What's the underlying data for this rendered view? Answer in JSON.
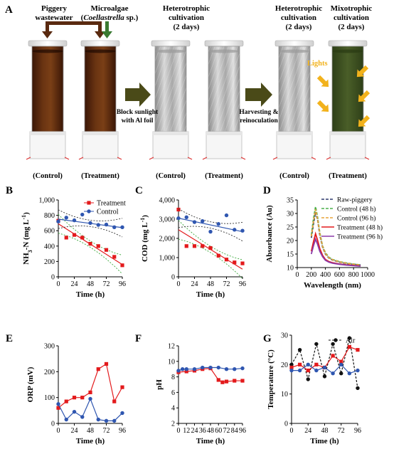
{
  "figure": {
    "panelA": {
      "letter": "A",
      "label_piggery": [
        "Piggery",
        "wastewater"
      ],
      "label_microalgae": "Microalgae",
      "label_species_open": "(",
      "label_species": "Coellastrella",
      "label_species_close": " sp.)",
      "stage1_title": [
        "Heterotrophic",
        "cultivation",
        "(2 days)"
      ],
      "stage2_title_left": [
        "Heterotrophic",
        "cultivation",
        "(2 days)"
      ],
      "stage2_title_right": [
        "Mixotrophic",
        "cultivation",
        "(2 days)"
      ],
      "arrow1_label": [
        "Block sunlight",
        "with Al foil"
      ],
      "arrow2_label": [
        "Harvesting &",
        "reinoculation"
      ],
      "lights_label": "Lights",
      "tube_labels": [
        "(Control)",
        "(Treatment)",
        "(Control)",
        "(Treatment)",
        "(Control)",
        "(Treatment)"
      ],
      "colors": {
        "wastewater": "#5a2a10",
        "algae_arrow": "#3a7a32",
        "green_culture": "#3d5222",
        "arrow": "#4a4a18",
        "lights": "#f2b21c"
      }
    }
  },
  "chart_data": [
    {
      "panel": "B",
      "type": "scatter",
      "xlabel": "Time (h)",
      "ylabel": "NH3-N (mg L-1)",
      "ylabel_parts": {
        "a": "NH",
        "b": "3",
        "c": "-N (mg L",
        "d": "-1",
        "e": ")"
      },
      "xlim": [
        0,
        96
      ],
      "ylim": [
        0,
        1000
      ],
      "xticks": [
        0,
        24,
        48,
        72,
        96
      ],
      "yticks": [
        0,
        200,
        400,
        600,
        800,
        1000
      ],
      "ytick_labels": [
        "0",
        "200",
        "400",
        "600",
        "800",
        "1,000"
      ],
      "legend": "top-right",
      "series": [
        {
          "name": "Treatment",
          "color": "#e31a1c",
          "marker": "square",
          "x": [
            0,
            12,
            24,
            36,
            48,
            60,
            72,
            84,
            96
          ],
          "y": [
            730,
            510,
            545,
            510,
            430,
            400,
            350,
            260,
            150
          ],
          "fit": [
            690,
            160
          ]
        },
        {
          "name": "Control",
          "color": "#2f56b0",
          "marker": "circle",
          "x": [
            0,
            12,
            24,
            36,
            48,
            60,
            72,
            84,
            96
          ],
          "y": [
            720,
            770,
            735,
            810,
            700,
            675,
            680,
            645,
            645
          ],
          "fit": [
            750,
            640
          ]
        }
      ]
    },
    {
      "panel": "C",
      "type": "scatter",
      "xlabel": "Time (h)",
      "ylabel": "COD (mg L-1)",
      "ylabel_parts": {
        "a": "COD (mg L",
        "d": "-1",
        "e": ")"
      },
      "xlim": [
        0,
        96
      ],
      "ylim": [
        0,
        4000
      ],
      "xticks": [
        0,
        24,
        48,
        72,
        96
      ],
      "yticks": [
        0,
        1000,
        2000,
        3000,
        4000
      ],
      "ytick_labels": [
        "0",
        "1,000",
        "2,000",
        "3,000",
        "4,000"
      ],
      "series": [
        {
          "name": "Treatment",
          "color": "#e31a1c",
          "marker": "square",
          "x": [
            0,
            12,
            24,
            36,
            48,
            60,
            72,
            84,
            96
          ],
          "y": [
            3500,
            1600,
            1600,
            1600,
            1500,
            1100,
            900,
            750,
            700
          ],
          "fit": [
            2450,
            400
          ]
        },
        {
          "name": "Control",
          "color": "#2f56b0",
          "marker": "circle",
          "x": [
            0,
            12,
            24,
            36,
            48,
            60,
            72,
            84,
            96
          ],
          "y": [
            3050,
            3100,
            2850,
            2900,
            2350,
            2750,
            3200,
            2450,
            2400
          ],
          "fit": [
            3050,
            2350
          ]
        }
      ]
    },
    {
      "panel": "D",
      "type": "line",
      "xlabel": "Wavelength (nm)",
      "ylabel": "Absorbance (Au)",
      "xlim": [
        0,
        1000
      ],
      "ylim": [
        10,
        35
      ],
      "xticks": [
        0,
        200,
        400,
        600,
        800,
        1000
      ],
      "yticks": [
        10,
        15,
        20,
        25,
        30,
        35
      ],
      "legend": "top-right",
      "series": [
        {
          "name": "Raw-piggery",
          "color": "#2f3a6e",
          "dash": true,
          "x": [
            200,
            230,
            260,
            290,
            320,
            360,
            400,
            450,
            500,
            600,
            700,
            800,
            900
          ],
          "y": [
            21,
            26,
            30.5,
            27.5,
            22,
            17.5,
            15,
            13.5,
            12.8,
            12,
            11.5,
            11.2,
            11
          ]
        },
        {
          "name": "Control (48 h)",
          "color": "#4bb04b",
          "dash": true,
          "x": [
            200,
            230,
            260,
            290,
            320,
            360,
            400,
            450,
            500,
            600,
            700,
            800,
            900
          ],
          "y": [
            22,
            28,
            32.5,
            28.5,
            23,
            18,
            15.5,
            13.8,
            13,
            12.2,
            11.7,
            11.3,
            11
          ]
        },
        {
          "name": "Control (96 h)",
          "color": "#e8a33a",
          "dash": true,
          "x": [
            200,
            230,
            260,
            290,
            320,
            360,
            400,
            450,
            500,
            600,
            700,
            800,
            900
          ],
          "y": [
            21.5,
            27,
            31.5,
            27.8,
            22.5,
            17.8,
            15.2,
            13.6,
            12.9,
            12.1,
            11.6,
            11.2,
            10.9
          ]
        },
        {
          "name": "Treatment (48 h)",
          "color": "#e31a1c",
          "dash": false,
          "x": [
            200,
            230,
            260,
            290,
            320,
            360,
            400,
            450,
            500,
            600,
            700,
            800,
            900
          ],
          "y": [
            16,
            19.5,
            22.5,
            20,
            17,
            14.5,
            13,
            12.2,
            11.8,
            11.3,
            11,
            10.8,
            10.6
          ]
        },
        {
          "name": "Treatment (96 h)",
          "color": "#8b3aa8",
          "dash": false,
          "x": [
            200,
            230,
            260,
            290,
            320,
            360,
            400,
            450,
            500,
            600,
            700,
            800,
            900
          ],
          "y": [
            15,
            18,
            20.5,
            18.5,
            16,
            14,
            12.7,
            12,
            11.6,
            11.2,
            10.9,
            10.7,
            10.5
          ]
        }
      ]
    },
    {
      "panel": "E",
      "type": "line",
      "xlabel": "Time (h)",
      "ylabel": "ORP (mV)",
      "xlim": [
        0,
        96
      ],
      "ylim": [
        0,
        300
      ],
      "xticks": [
        0,
        24,
        48,
        72,
        96
      ],
      "yticks": [
        0,
        100,
        200,
        300
      ],
      "series": [
        {
          "name": "Treatment",
          "color": "#e31a1c",
          "marker": "square",
          "x": [
            0,
            12,
            24,
            36,
            48,
            60,
            72,
            84,
            96
          ],
          "y": [
            60,
            85,
            100,
            100,
            120,
            210,
            230,
            85,
            140
          ]
        },
        {
          "name": "Control",
          "color": "#2f56b0",
          "marker": "circle",
          "x": [
            0,
            12,
            24,
            36,
            48,
            60,
            72,
            84,
            96
          ],
          "y": [
            75,
            15,
            45,
            25,
            95,
            15,
            10,
            10,
            40
          ]
        }
      ]
    },
    {
      "panel": "F",
      "type": "line",
      "xlabel": "Time (h)",
      "ylabel": "pH",
      "xlim": [
        0,
        96
      ],
      "ylim": [
        2,
        12
      ],
      "xticks": [
        0,
        12,
        24,
        36,
        48,
        60,
        72,
        84,
        96
      ],
      "yticks": [
        2,
        4,
        6,
        8,
        10,
        12
      ],
      "series": [
        {
          "name": "Treatment",
          "color": "#e31a1c",
          "marker": "square",
          "x": [
            0,
            12,
            24,
            36,
            48,
            60,
            66,
            72,
            84,
            96
          ],
          "y": [
            8.6,
            8.7,
            8.8,
            9.0,
            9.1,
            7.6,
            7.3,
            7.4,
            7.5,
            7.5
          ]
        },
        {
          "name": "Control",
          "color": "#2f56b0",
          "marker": "circle",
          "x": [
            0,
            6,
            12,
            24,
            36,
            48,
            60,
            72,
            84,
            96
          ],
          "y": [
            8.8,
            9.0,
            9.0,
            9.0,
            9.2,
            9.2,
            9.2,
            9.0,
            9.0,
            9.1
          ]
        }
      ]
    },
    {
      "panel": "G",
      "type": "line",
      "xlabel": "Time (h)",
      "ylabel": "Temperature (°C)",
      "xlim": [
        0,
        96
      ],
      "ylim": [
        0,
        30
      ],
      "xticks": [
        0,
        24,
        48,
        72,
        96
      ],
      "yticks": [
        0,
        10,
        20,
        30
      ],
      "legend": "top-right",
      "series": [
        {
          "name": "Air",
          "color": "#111111",
          "marker": "circle",
          "dash": true,
          "x": [
            0,
            12,
            24,
            36,
            48,
            60,
            72,
            84,
            96
          ],
          "y": [
            20,
            25,
            15,
            27,
            16,
            27,
            17,
            29,
            12
          ]
        },
        {
          "color": "#e31a1c",
          "marker": "square",
          "x": [
            0,
            12,
            24,
            36,
            48,
            60,
            72,
            84,
            96
          ],
          "y": [
            19,
            20,
            18,
            20,
            19,
            23,
            21,
            26,
            25
          ]
        },
        {
          "color": "#2f56b0",
          "marker": "circle",
          "x": [
            0,
            12,
            24,
            36,
            48,
            60,
            72,
            84,
            96
          ],
          "y": [
            18,
            18,
            20,
            18,
            19,
            17,
            20,
            17,
            18
          ]
        }
      ]
    }
  ]
}
